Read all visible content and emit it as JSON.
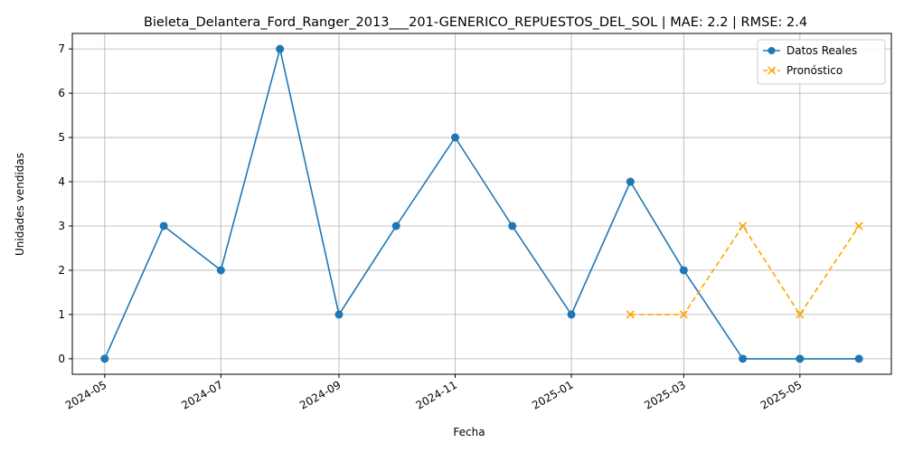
{
  "chart_data": {
    "type": "line",
    "title": "Bieleta_Delantera_Ford_Ranger_2013___201-GENERICO_REPUESTOS_DEL_SOL | MAE: 2.2 | RMSE: 2.4",
    "xlabel": "Fecha",
    "ylabel": "Unidades vendidas",
    "x_ticks": [
      "2024-05",
      "2024-07",
      "2024-09",
      "2024-11",
      "2025-01",
      "2025-03",
      "2025-05"
    ],
    "y_ticks": [
      0,
      1,
      2,
      3,
      4,
      5,
      6,
      7
    ],
    "ylim": [
      -0.35,
      7.35
    ],
    "xlim": [
      "2024-04-14",
      "2025-06-18"
    ],
    "grid": true,
    "legend_position": "top-right",
    "series": [
      {
        "name": "Datos Reales",
        "color": "#1f77b4",
        "line_style": "solid",
        "marker": "circle",
        "x": [
          "2024-05-01",
          "2024-06-01",
          "2024-07-01",
          "2024-08-01",
          "2024-09-01",
          "2024-10-01",
          "2024-11-01",
          "2024-12-01",
          "2025-01-01",
          "2025-02-01",
          "2025-03-01",
          "2025-04-01",
          "2025-05-01",
          "2025-06-01"
        ],
        "values": [
          0,
          3,
          2,
          7,
          1,
          3,
          5,
          3,
          1,
          4,
          2,
          0,
          0,
          0
        ]
      },
      {
        "name": "Pronóstico",
        "color": "#ffa500",
        "line_style": "dashed",
        "marker": "x",
        "x": [
          "2025-02-01",
          "2025-03-01",
          "2025-04-01",
          "2025-05-01",
          "2025-06-01"
        ],
        "values": [
          1,
          1,
          3,
          1,
          3
        ]
      }
    ]
  }
}
